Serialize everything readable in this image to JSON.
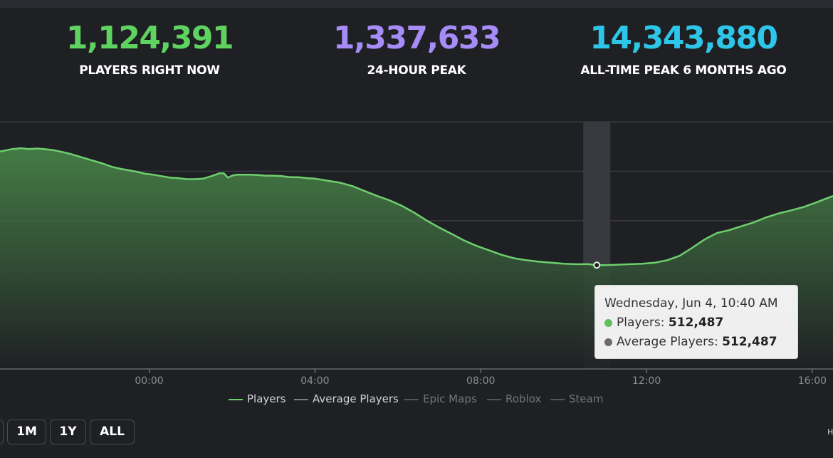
{
  "stats": {
    "current": {
      "value": "1,124,391",
      "label": "PLAYERS RIGHT NOW",
      "color": "#5fd35f"
    },
    "peak24": {
      "value": "1,337,633",
      "label": "24-HOUR PEAK",
      "color": "#a68cf7"
    },
    "alltime": {
      "value": "14,343,880",
      "label": "ALL-TIME PEAK 6 MONTHS AGO",
      "color": "#2ec6e8"
    }
  },
  "chart_data": {
    "type": "area",
    "x_unit": "hours",
    "x_tick_labels": [
      "00:00",
      "04:00",
      "08:00",
      "12:00",
      "16:00"
    ],
    "x_tick_values": [
      0,
      4,
      8,
      12,
      16
    ],
    "xlim": [
      -3.6,
      16.5
    ],
    "ylim": [
      0,
      1.0
    ],
    "gridlines": 5,
    "series": [
      {
        "name": "Players",
        "color": "#6ecf6e",
        "x": [
          -3.6,
          -3.3,
          -3.1,
          -2.9,
          -2.7,
          -2.5,
          -2.3,
          -2.1,
          -1.9,
          -1.7,
          -1.5,
          -1.3,
          -1.1,
          -0.9,
          -0.7,
          -0.5,
          -0.3,
          -0.1,
          0.1,
          0.3,
          0.5,
          0.7,
          0.9,
          1.1,
          1.3,
          1.5,
          1.7,
          1.8,
          1.9,
          2.0,
          2.1,
          2.2,
          2.4,
          2.6,
          2.8,
          3.0,
          3.2,
          3.4,
          3.6,
          3.8,
          4.0,
          4.3,
          4.6,
          4.9,
          5.2,
          5.5,
          5.8,
          6.1,
          6.4,
          6.7,
          7.0,
          7.3,
          7.6,
          7.9,
          8.2,
          8.5,
          8.8,
          9.1,
          9.4,
          9.7,
          10.0,
          10.3,
          10.6,
          10.8,
          11.0,
          11.3,
          11.6,
          11.9,
          12.2,
          12.5,
          12.8,
          13.1,
          13.4,
          13.7,
          14.0,
          14.3,
          14.6,
          14.9,
          15.2,
          15.5,
          15.8,
          16.1,
          16.5
        ],
        "y": [
          0.88,
          0.89,
          0.893,
          0.89,
          0.892,
          0.889,
          0.885,
          0.878,
          0.87,
          0.86,
          0.85,
          0.84,
          0.83,
          0.818,
          0.81,
          0.804,
          0.798,
          0.79,
          0.786,
          0.78,
          0.774,
          0.772,
          0.768,
          0.768,
          0.77,
          0.78,
          0.792,
          0.792,
          0.774,
          0.782,
          0.786,
          0.786,
          0.786,
          0.785,
          0.782,
          0.782,
          0.78,
          0.776,
          0.776,
          0.772,
          0.77,
          0.762,
          0.754,
          0.74,
          0.72,
          0.7,
          0.682,
          0.66,
          0.632,
          0.6,
          0.572,
          0.546,
          0.52,
          0.498,
          0.48,
          0.462,
          0.448,
          0.44,
          0.434,
          0.43,
          0.426,
          0.424,
          0.424,
          0.42,
          0.42,
          0.422,
          0.424,
          0.426,
          0.43,
          0.44,
          0.458,
          0.49,
          0.524,
          0.55,
          0.562,
          0.578,
          0.594,
          0.614,
          0.63,
          0.642,
          0.656,
          0.674,
          0.7
        ]
      }
    ],
    "highlight": {
      "x": 10.8,
      "y": 0.42
    },
    "legend": [
      {
        "name": "Players",
        "color": "#6ecf6e",
        "text_color": "#cfd1d4"
      },
      {
        "name": "Average Players",
        "color": "#7d7e82",
        "text_color": "#cfd1d4"
      },
      {
        "name": "Epic Maps",
        "color": "#55565b",
        "text_color": "#74757a"
      },
      {
        "name": "Roblox",
        "color": "#55565b",
        "text_color": "#74757a"
      },
      {
        "name": "Steam",
        "color": "#55565b",
        "text_color": "#74757a"
      }
    ]
  },
  "tooltip": {
    "title": "Wednesday, Jun 4, 10:40 AM",
    "players_label": "Players:",
    "players_value": "512,487",
    "avg_label": "Average Players:",
    "avg_value": "512,487",
    "players_dot_color": "#5fbf5f",
    "avg_dot_color": "#6b6b6b"
  },
  "range_buttons": [
    "1M",
    "1Y",
    "ALL"
  ],
  "edge_text": "H"
}
